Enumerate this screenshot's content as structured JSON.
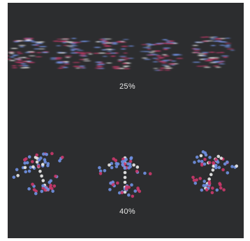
{
  "labels": {
    "top_percent": "25%",
    "bottom_percent": "40%"
  },
  "palette": {
    "background": "#2c2d2f",
    "pink": "#c8386a",
    "blue": "#6f8fe0",
    "white": "#e8e8e8"
  },
  "scene": {
    "top_row_figures": [
      "smeared-butterfly",
      "smeared-butterfly",
      "smeared-butterfly",
      "smeared-butterfly",
      "smeared-butterfly"
    ],
    "bottom_row_figures": [
      "dotted-butterfly",
      "dotted-butterfly",
      "dotted-butterfly"
    ]
  }
}
